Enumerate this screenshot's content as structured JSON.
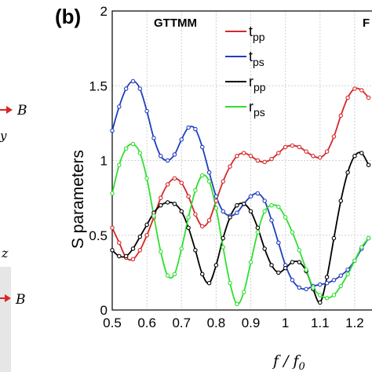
{
  "chart_data": {
    "type": "line",
    "panel_label": "(b)",
    "method_label": "GTTMM",
    "method_label_right_partial": "F",
    "ylabel": "S parameters",
    "xlabel": "f / f",
    "xlabel_subscript": "0",
    "xlim": [
      0.5,
      1.25
    ],
    "ylim": [
      0,
      2
    ],
    "x_ticks": [
      "0.5",
      "0.6",
      "0.7",
      "0.8",
      "0.9",
      "1",
      "1.1",
      "1.2"
    ],
    "y_ticks": [
      "0",
      "0.5",
      "1",
      "1.5",
      "2"
    ],
    "grid": true,
    "legend_position": "top-right",
    "series": [
      {
        "name_main": "t",
        "name_sub": "pp",
        "color": "#d62728",
        "x": [
          0.5,
          0.52,
          0.54,
          0.56,
          0.58,
          0.6,
          0.62,
          0.64,
          0.66,
          0.68,
          0.7,
          0.72,
          0.74,
          0.76,
          0.78,
          0.8,
          0.82,
          0.84,
          0.86,
          0.88,
          0.9,
          0.92,
          0.94,
          0.96,
          0.98,
          1.0,
          1.02,
          1.04,
          1.06,
          1.08,
          1.1,
          1.12,
          1.14,
          1.16,
          1.18,
          1.2,
          1.22,
          1.24
        ],
        "y": [
          0.55,
          0.45,
          0.35,
          0.34,
          0.4,
          0.5,
          0.62,
          0.75,
          0.84,
          0.88,
          0.85,
          0.76,
          0.64,
          0.56,
          0.6,
          0.73,
          0.86,
          0.96,
          1.03,
          1.05,
          1.03,
          1.0,
          0.99,
          1.01,
          1.05,
          1.09,
          1.1,
          1.09,
          1.06,
          1.03,
          1.02,
          1.06,
          1.16,
          1.3,
          1.42,
          1.48,
          1.47,
          1.42
        ]
      },
      {
        "name_main": "t",
        "name_sub": "ps",
        "color": "#1f3fbf",
        "x": [
          0.5,
          0.52,
          0.54,
          0.56,
          0.58,
          0.6,
          0.62,
          0.64,
          0.66,
          0.68,
          0.7,
          0.72,
          0.74,
          0.76,
          0.78,
          0.8,
          0.82,
          0.84,
          0.86,
          0.88,
          0.9,
          0.92,
          0.94,
          0.96,
          0.98,
          1.0,
          1.02,
          1.04,
          1.06,
          1.08,
          1.1,
          1.12,
          1.14,
          1.16,
          1.18,
          1.2,
          1.22,
          1.24
        ],
        "y": [
          1.2,
          1.36,
          1.48,
          1.53,
          1.48,
          1.33,
          1.15,
          1.03,
          1.0,
          1.04,
          1.14,
          1.22,
          1.21,
          1.09,
          0.92,
          0.76,
          0.66,
          0.63,
          0.65,
          0.71,
          0.76,
          0.78,
          0.73,
          0.6,
          0.45,
          0.3,
          0.2,
          0.15,
          0.14,
          0.16,
          0.17,
          0.18,
          0.2,
          0.23,
          0.27,
          0.33,
          0.41,
          0.48
        ]
      },
      {
        "name_main": "r",
        "name_sub": "pp",
        "color": "#000000",
        "x": [
          0.5,
          0.52,
          0.54,
          0.56,
          0.58,
          0.6,
          0.62,
          0.64,
          0.66,
          0.68,
          0.7,
          0.72,
          0.74,
          0.76,
          0.78,
          0.8,
          0.82,
          0.84,
          0.86,
          0.88,
          0.9,
          0.92,
          0.94,
          0.96,
          0.98,
          1.0,
          1.02,
          1.04,
          1.06,
          1.08,
          1.1,
          1.12,
          1.14,
          1.16,
          1.18,
          1.2,
          1.22,
          1.24
        ],
        "y": [
          0.4,
          0.36,
          0.36,
          0.41,
          0.49,
          0.57,
          0.65,
          0.7,
          0.72,
          0.71,
          0.66,
          0.55,
          0.4,
          0.24,
          0.18,
          0.3,
          0.48,
          0.62,
          0.7,
          0.71,
          0.66,
          0.55,
          0.41,
          0.3,
          0.25,
          0.28,
          0.32,
          0.32,
          0.26,
          0.14,
          0.05,
          0.22,
          0.48,
          0.73,
          0.92,
          1.03,
          1.05,
          0.97
        ]
      },
      {
        "name_main": "r",
        "name_sub": "ps",
        "color": "#2ee02e",
        "x": [
          0.5,
          0.52,
          0.54,
          0.56,
          0.58,
          0.6,
          0.62,
          0.64,
          0.66,
          0.68,
          0.7,
          0.72,
          0.74,
          0.76,
          0.78,
          0.8,
          0.82,
          0.84,
          0.86,
          0.88,
          0.9,
          0.92,
          0.94,
          0.96,
          0.98,
          1.0,
          1.02,
          1.04,
          1.06,
          1.08,
          1.1,
          1.12,
          1.14,
          1.16,
          1.18,
          1.2,
          1.22,
          1.24
        ],
        "y": [
          0.78,
          0.97,
          1.08,
          1.11,
          1.05,
          0.88,
          0.63,
          0.39,
          0.23,
          0.24,
          0.41,
          0.62,
          0.8,
          0.9,
          0.86,
          0.68,
          0.42,
          0.18,
          0.04,
          0.12,
          0.32,
          0.52,
          0.66,
          0.7,
          0.69,
          0.62,
          0.52,
          0.4,
          0.27,
          0.15,
          0.1,
          0.08,
          0.1,
          0.16,
          0.24,
          0.33,
          0.42,
          0.48
        ]
      }
    ]
  },
  "left_panel": {
    "arrow_label_top": "B",
    "axis_label_top": "y",
    "axis_label_bottom": "z",
    "arrow_label_bottom": "B"
  }
}
